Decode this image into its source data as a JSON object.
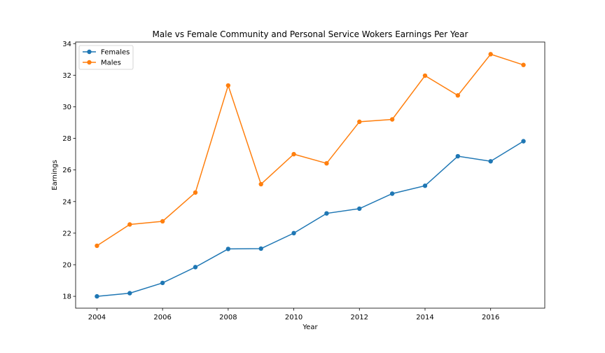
{
  "chart_data": {
    "type": "line",
    "title": "Male vs Female Community and Personal Service Wokers Earnings Per Year",
    "xlabel": "Year",
    "ylabel": "Earnings",
    "x": [
      2004,
      2005,
      2006,
      2007,
      2008,
      2009,
      2010,
      2011,
      2012,
      2013,
      2014,
      2015,
      2016,
      2017
    ],
    "xlim": [
      2003.35,
      2017.65
    ],
    "ylim": [
      17.25,
      34.1
    ],
    "xticks": [
      2004,
      2006,
      2008,
      2010,
      2012,
      2014,
      2016
    ],
    "yticks": [
      18,
      20,
      22,
      24,
      26,
      28,
      30,
      32,
      34
    ],
    "grid": false,
    "legend_position": "top-left",
    "series": [
      {
        "name": "Females",
        "color": "#1f77b4",
        "values": [
          18.0,
          18.2,
          18.85,
          19.85,
          21.0,
          21.02,
          22.0,
          23.25,
          23.55,
          24.5,
          25.0,
          26.87,
          26.55,
          27.82
        ]
      },
      {
        "name": "Males",
        "color": "#ff7f0e",
        "values": [
          21.2,
          22.55,
          22.75,
          24.57,
          31.35,
          25.1,
          27.0,
          26.42,
          29.05,
          29.2,
          31.97,
          30.72,
          33.33,
          32.65
        ]
      }
    ]
  }
}
